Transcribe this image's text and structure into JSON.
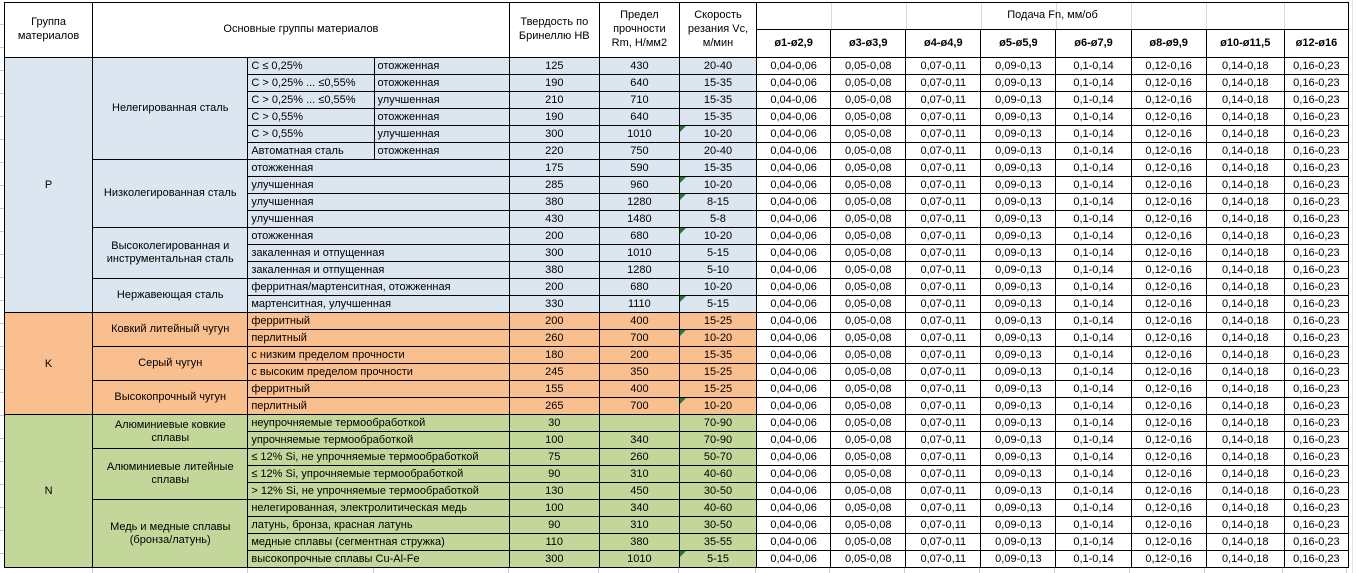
{
  "colors": {
    "group_p": "#dce6f1",
    "group_k": "#fabf8f",
    "group_n": "#c4d79b",
    "flag_triangle": "#1e7d34"
  },
  "header": {
    "group": "Группа материалов",
    "main": "Основные группы материалов",
    "hb": "Твердость по Бринеллю HB",
    "rm": "Предел прочности Rm, Н/мм2",
    "vc": "Скорость резания Vc, м/мин",
    "feed_title": "Подача Fn, мм/об",
    "feed_cols": [
      "ø1-ø2,9",
      "ø3-ø3,9",
      "ø4-ø4,9",
      "ø5-ø5,9",
      "ø6-ø7,9",
      "ø8-ø9,9",
      "ø10-ø11,5",
      "ø12-ø16"
    ]
  },
  "feed_values": [
    "0,04-0,06",
    "0,05-0,08",
    "0,07-0,11",
    "0,09-0,13",
    "0,1-0,14",
    "0,12-0,16",
    "0,14-0,18",
    "0,16-0,23"
  ],
  "groups": [
    {
      "code": "P",
      "color": "#dce6f1",
      "subgroups": [
        {
          "name": "Нелегированная сталь",
          "rows": [
            {
              "c1": "C ≤ 0,25%",
              "c2": "отожженная",
              "hb": "125",
              "rm": "430",
              "vc": "20-40",
              "flag": false
            },
            {
              "c1": "C > 0,25% ... ≤0,55%",
              "c2": "отожженная",
              "hb": "190",
              "rm": "640",
              "vc": "15-35",
              "flag": false
            },
            {
              "c1": "C > 0,25% ... ≤0,55%",
              "c2": "улучшенная",
              "hb": "210",
              "rm": "710",
              "vc": "15-35",
              "flag": false
            },
            {
              "c1": "C > 0,55%",
              "c2": "отожженная",
              "hb": "190",
              "rm": "640",
              "vc": "15-35",
              "flag": false
            },
            {
              "c1": "C > 0,55%",
              "c2": "улучшенная",
              "hb": "300",
              "rm": "1010",
              "vc": "10-20",
              "flag": true
            },
            {
              "c1": "Автоматная сталь",
              "c2": "отожженная",
              "hb": "220",
              "rm": "750",
              "vc": "20-40",
              "flag": false
            }
          ]
        },
        {
          "name": "Низколегированная сталь",
          "rows": [
            {
              "desc": "отожженная",
              "hb": "175",
              "rm": "590",
              "vc": "15-35",
              "flag": false
            },
            {
              "desc": "улучшенная",
              "hb": "285",
              "rm": "960",
              "vc": "10-20",
              "flag": true
            },
            {
              "desc": "улучшенная",
              "hb": "380",
              "rm": "1280",
              "vc": "8-15",
              "flag": true
            },
            {
              "desc": "улучшенная",
              "hb": "430",
              "rm": "1480",
              "vc": "5-8",
              "flag": false
            }
          ]
        },
        {
          "name": "Высоколегированная и инструментальная сталь",
          "rows": [
            {
              "desc": "отожженная",
              "hb": "200",
              "rm": "680",
              "vc": "10-20",
              "flag": true
            },
            {
              "desc": "закаленная и отпущенная",
              "hb": "300",
              "rm": "1010",
              "vc": "5-15",
              "flag": false
            },
            {
              "desc": "закаленная и отпущенная",
              "hb": "380",
              "rm": "1280",
              "vc": "5-10",
              "flag": false
            }
          ]
        },
        {
          "name": "Нержавеющая сталь",
          "rows": [
            {
              "desc": "ферритная/мартенситная, отожженная",
              "hb": "200",
              "rm": "680",
              "vc": "10-20",
              "flag": false
            },
            {
              "desc": "мартенситная, улучшенная",
              "hb": "330",
              "rm": "1110",
              "vc": "5-15",
              "flag": true
            }
          ]
        }
      ]
    },
    {
      "code": "K",
      "color": "#fabf8f",
      "subgroups": [
        {
          "name": "Ковкий литейный чугун",
          "rows": [
            {
              "desc": "ферритный",
              "hb": "200",
              "rm": "400",
              "vc": "15-25",
              "flag": false
            },
            {
              "desc": "перлитный",
              "hb": "260",
              "rm": "700",
              "vc": "10-20",
              "flag": true
            }
          ]
        },
        {
          "name": "Серый чугун",
          "rows": [
            {
              "desc": "с низким пределом прочности",
              "hb": "180",
              "rm": "200",
              "vc": "15-35",
              "flag": false
            },
            {
              "desc": "с высоким пределом прочности",
              "hb": "245",
              "rm": "350",
              "vc": "15-25",
              "flag": false
            }
          ]
        },
        {
          "name": "Высокопрочный чугун",
          "rows": [
            {
              "desc": "ферритный",
              "hb": "155",
              "rm": "400",
              "vc": "15-25",
              "flag": false
            },
            {
              "desc": "перлитный",
              "hb": "265",
              "rm": "700",
              "vc": "10-20",
              "flag": true
            }
          ]
        }
      ]
    },
    {
      "code": "N",
      "color": "#c4d79b",
      "subgroups": [
        {
          "name": "Алюминиевые ковкие сплавы",
          "rows": [
            {
              "desc": "неупрочняемые термообработкой",
              "hb": "30",
              "rm": "",
              "vc": "70-90",
              "flag": false
            },
            {
              "desc": "упрочняемые термообработкой",
              "hb": "100",
              "rm": "340",
              "vc": "70-90",
              "flag": false
            }
          ]
        },
        {
          "name": "Алюминиевые литейные сплавы",
          "rows": [
            {
              "desc": "≤ 12% Si, не упрочняемые термообработкой",
              "hb": "75",
              "rm": "260",
              "vc": "50-70",
              "flag": false
            },
            {
              "desc": "≤ 12% Si, упрочняемые термообработкой",
              "hb": "90",
              "rm": "310",
              "vc": "40-60",
              "flag": false
            },
            {
              "desc": "> 12% Si, не упрочняемые термообработкой",
              "hb": "130",
              "rm": "450",
              "vc": "30-50",
              "flag": false
            }
          ]
        },
        {
          "name": "Медь и медные сплавы (бронза/латунь)",
          "rows": [
            {
              "desc": "нелегированная, электролитическая медь",
              "hb": "100",
              "rm": "340",
              "vc": "40-60",
              "flag": false
            },
            {
              "desc": "латунь, бронза, красная латунь",
              "hb": "90",
              "rm": "310",
              "vc": "30-50",
              "flag": false
            },
            {
              "desc": "медные сплавы (сегментная стружка)",
              "hb": "110",
              "rm": "380",
              "vc": "35-55",
              "flag": false
            },
            {
              "desc": "высокопрочные сплавы Cu-Al-Fe",
              "hb": "300",
              "rm": "1010",
              "vc": "5-15",
              "flag": true
            }
          ]
        }
      ]
    }
  ]
}
